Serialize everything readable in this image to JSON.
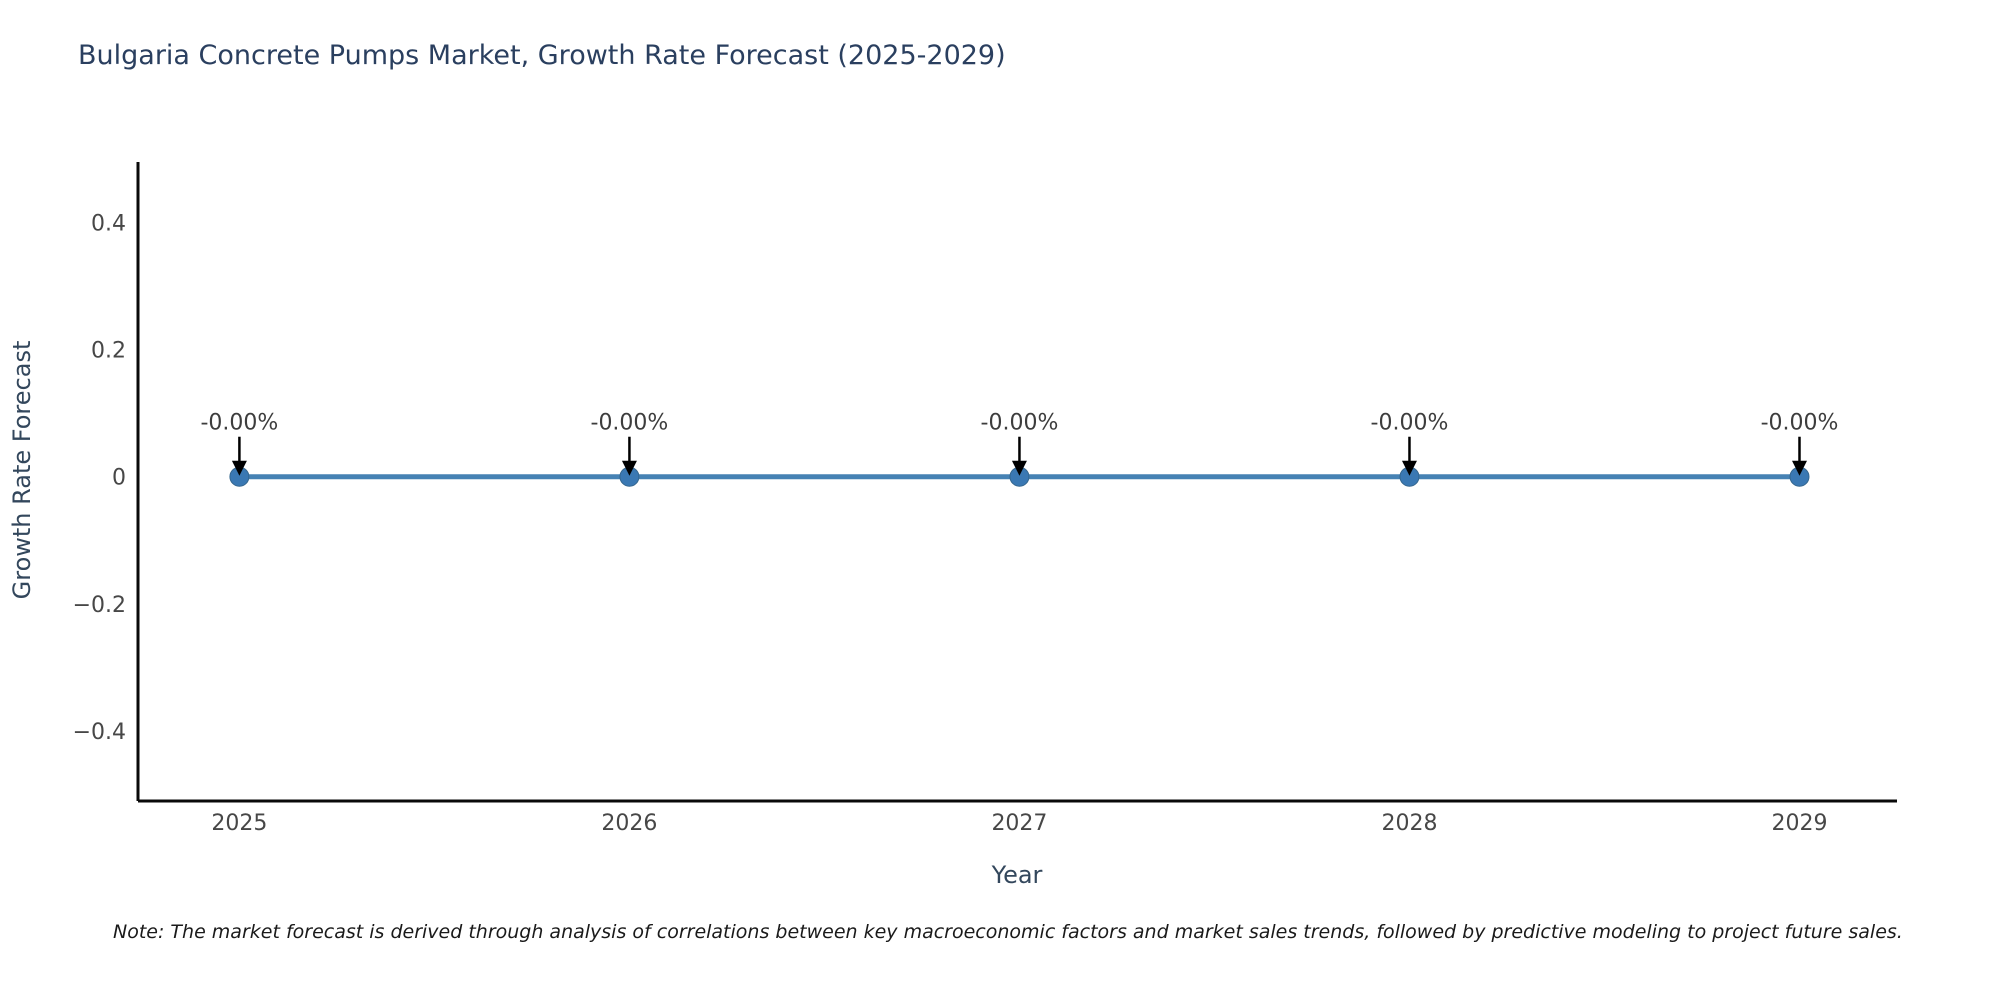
{
  "title": "Bulgaria Concrete Pumps Market, Growth Rate Forecast (2025-2029)",
  "note": "Note: The market forecast is derived through analysis of correlations between key macroeconomic factors and market sales trends, followed by predictive modeling to project future sales.",
  "chart_data": {
    "type": "line",
    "title": "Bulgaria Concrete Pumps Market, Growth Rate Forecast (2025-2029)",
    "x": [
      2025,
      2026,
      2027,
      2028,
      2029
    ],
    "series": [
      {
        "name": "Growth Rate Forecast",
        "values": [
          0,
          0,
          0,
          0,
          0
        ]
      }
    ],
    "point_labels": [
      "-0.00%",
      "-0.00%",
      "-0.00%",
      "-0.00%",
      "-0.00%"
    ],
    "xlabel": "Year",
    "ylabel": "Growth Rate Forecast",
    "xticks": [
      {
        "value": 2025,
        "label": "2025"
      },
      {
        "value": 2026,
        "label": "2026"
      },
      {
        "value": 2027,
        "label": "2027"
      },
      {
        "value": 2028,
        "label": "2028"
      },
      {
        "value": 2029,
        "label": "2029"
      }
    ],
    "yticks": [
      {
        "value": 0.4,
        "label": "0.4"
      },
      {
        "value": 0.2,
        "label": "0.2"
      },
      {
        "value": 0,
        "label": "0"
      },
      {
        "value": -0.2,
        "label": "−0.2"
      },
      {
        "value": -0.4,
        "label": "−0.4"
      }
    ],
    "xlim": [
      2024.74,
      2029.25
    ],
    "ylim": [
      -0.51,
      0.495
    ],
    "grid": false,
    "legend_position": "none",
    "colors": {
      "line": "#4682b4",
      "marker_fill": "#3a78b3",
      "marker_edge": "#35678f",
      "axis_line": "#0a0a0a",
      "arrow": "#000000",
      "tick_text": "#474747",
      "annotation_text": "#3d3d3d",
      "title_text": "#2a3f5f"
    }
  }
}
